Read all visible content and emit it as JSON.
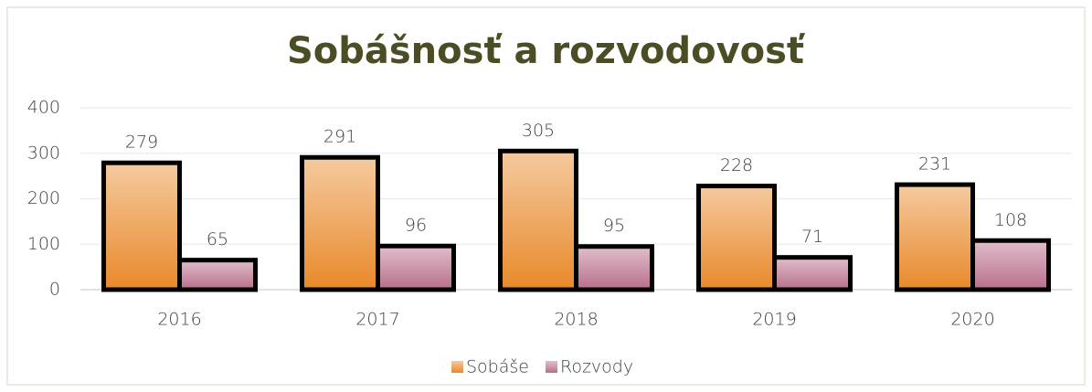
{
  "chart_data": {
    "type": "bar",
    "title": "Sobášnosť a rozvodovosť",
    "categories": [
      "2016",
      "2017",
      "2018",
      "2019",
      "2020"
    ],
    "series": [
      {
        "name": "Sobáše",
        "color": "#e8892a",
        "values": [
          279,
          291,
          305,
          228,
          231
        ]
      },
      {
        "name": "Rozvody",
        "color": "#b96e8c",
        "values": [
          65,
          96,
          95,
          71,
          108
        ]
      }
    ],
    "ylim": [
      0,
      400
    ],
    "yticks": [
      0,
      100,
      200,
      300,
      400
    ],
    "grid": true,
    "legend": "bottom"
  }
}
